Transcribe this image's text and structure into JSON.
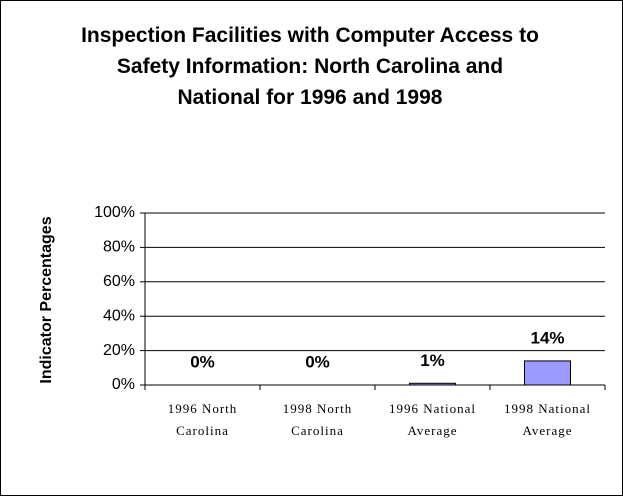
{
  "chart_data": {
    "type": "bar",
    "title": "Inspection Facilities with Computer Access to Safety Information: North Carolina and National for 1996 and 1998",
    "y_label": "Indicator Percentages",
    "categories": [
      "1996 North Carolina",
      "1998 North Carolina",
      "1996 National Average",
      "1998 National Average"
    ],
    "values": [
      0,
      0,
      1,
      14
    ],
    "value_labels": [
      "0%",
      "0%",
      "1%",
      "14%"
    ],
    "color": "#9999ff",
    "ylim": [
      0,
      100
    ],
    "yticks": [
      {
        "value": 0,
        "label": "0%"
      },
      {
        "value": 20,
        "label": "20%"
      },
      {
        "value": 40,
        "label": "40%"
      },
      {
        "value": 60,
        "label": "60%"
      },
      {
        "value": 80,
        "label": "80%"
      },
      {
        "value": 100,
        "label": "100%"
      }
    ],
    "grid": true
  }
}
